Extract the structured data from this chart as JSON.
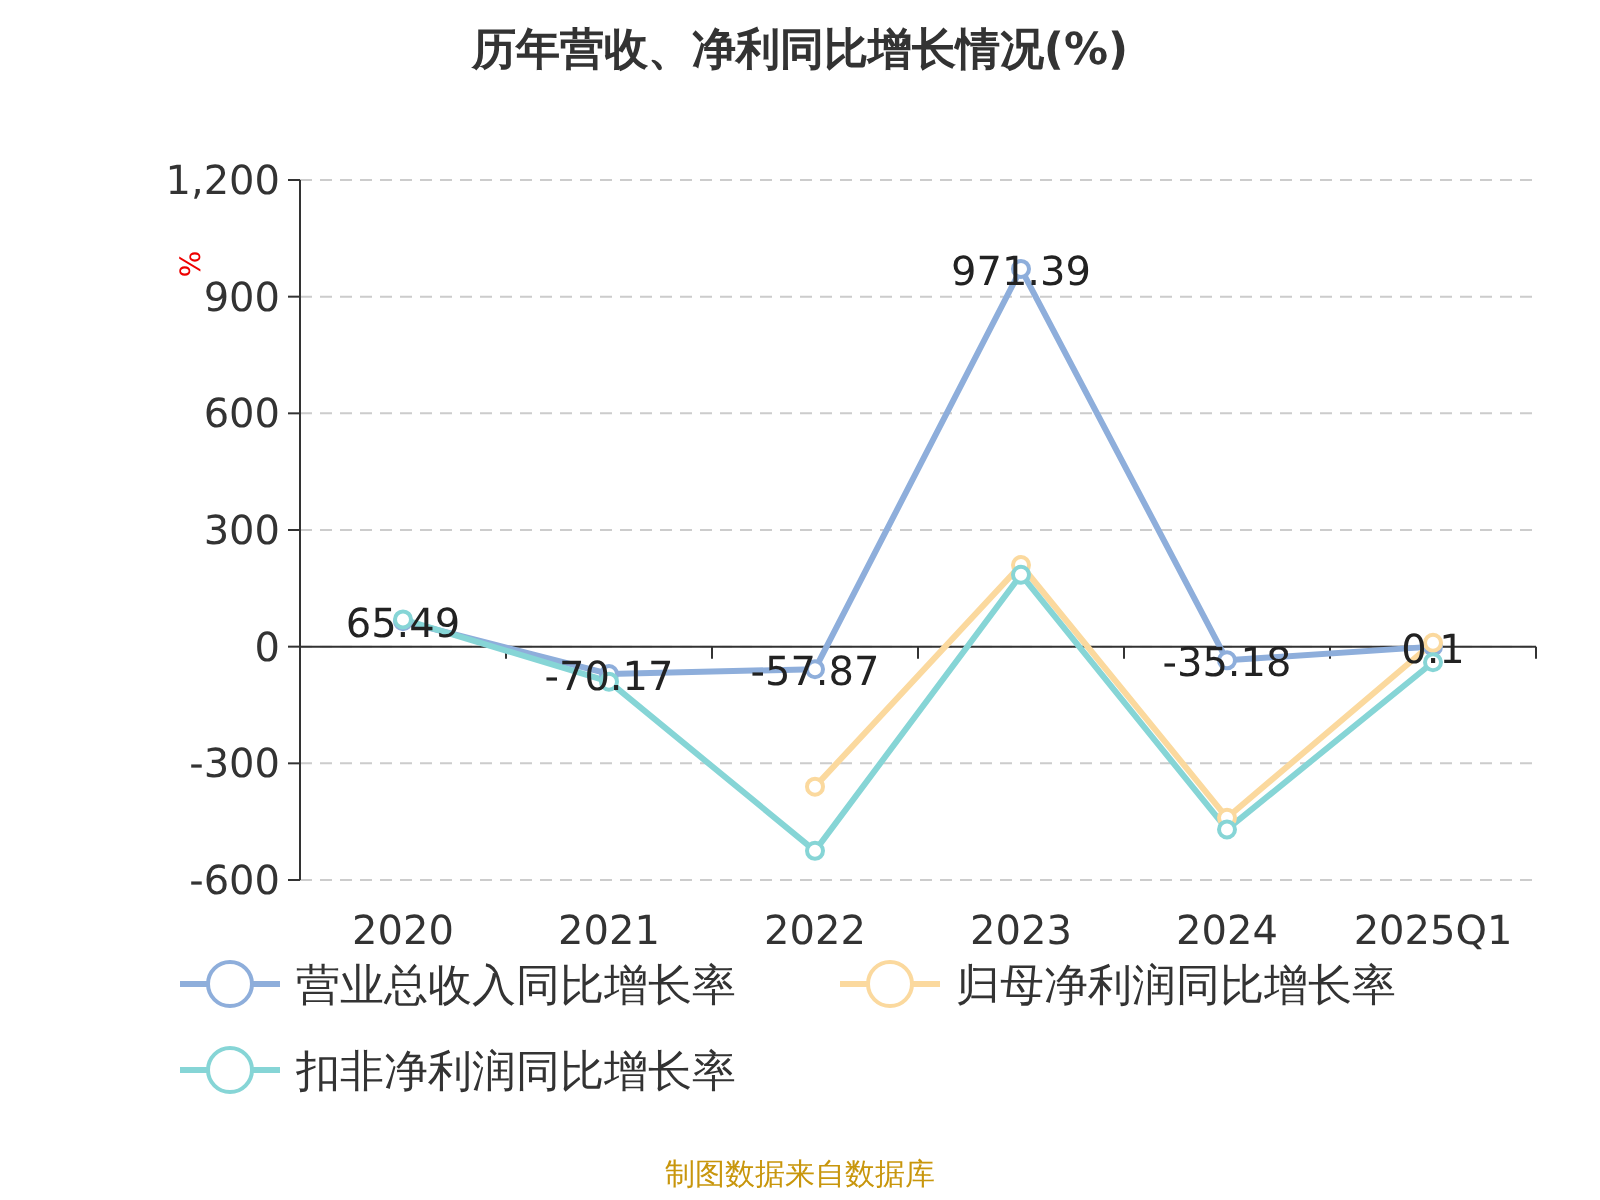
{
  "chart_data": {
    "type": "line",
    "title": "历年营收、净利同比增长情况(%)",
    "ylabel": "%",
    "categories": [
      "2020",
      "2021",
      "2022",
      "2023",
      "2024",
      "2025Q1"
    ],
    "series": [
      {
        "name": "营业总收入同比增长率",
        "color": "#8eaedb",
        "values": [
          65.49,
          -70.17,
          -57.87,
          971.39,
          -35.18,
          0.1
        ],
        "value_labels": [
          "65.49",
          "-70.17",
          "-57.87",
          "971.39",
          "-35.18",
          "0.1"
        ]
      },
      {
        "name": "归母净利润同比增长率",
        "color": "#fbd99e",
        "values": [
          null,
          null,
          -360,
          210,
          -440,
          10
        ]
      },
      {
        "name": "扣非净利润同比增长率",
        "color": "#86d5d6",
        "values": [
          70,
          -90,
          -525,
          185,
          -470,
          -40
        ]
      }
    ],
    "ylim": [
      -600,
      1200
    ],
    "yticks": [
      -600,
      -300,
      0,
      300,
      600,
      900,
      {
        "value": 1200,
        "label": "1,200"
      }
    ],
    "grid": "y",
    "legend": "bottom",
    "marker": "circle",
    "line_style": "solid",
    "annotations": [
      "制图数据来自数据库"
    ]
  }
}
